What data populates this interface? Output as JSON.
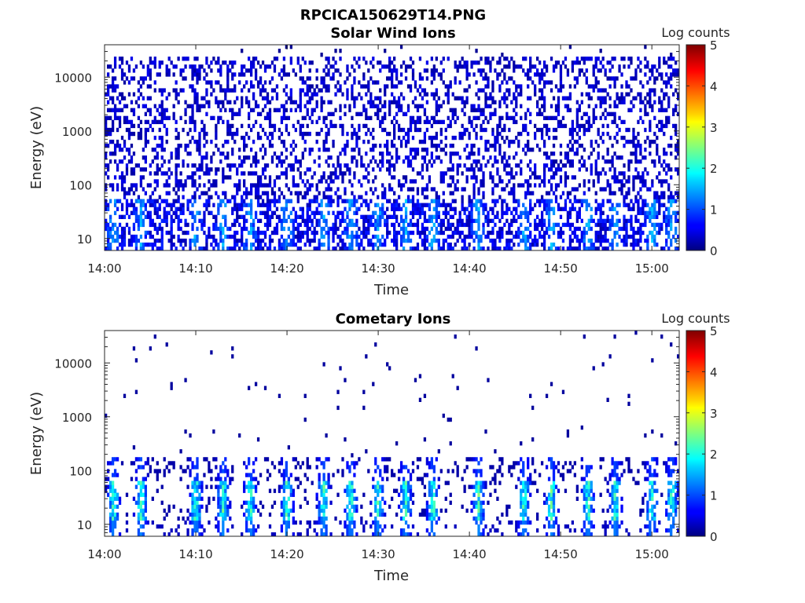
{
  "figure_title": "RPCICA150629T14.PNG",
  "chart_data": [
    {
      "type": "heatmap",
      "title": "Solar Wind Ions",
      "xlabel": "Time",
      "ylabel": "Energy (eV)",
      "y_scale": "log",
      "ylim": [
        6,
        40000
      ],
      "x_range": [
        "14:00",
        "15:03"
      ],
      "x_ticks": [
        "14:00",
        "14:10",
        "14:20",
        "14:30",
        "14:40",
        "14:50",
        "15:00"
      ],
      "y_ticks": [
        "10",
        "100",
        "1000",
        "10000"
      ],
      "y_tick_values": [
        10,
        100,
        1000,
        10000
      ],
      "colorbar": {
        "label": "Log counts",
        "min": 0,
        "max": 5,
        "ticks": [
          "0",
          "1",
          "2",
          "3",
          "4",
          "5"
        ],
        "colormap": "jet"
      },
      "grid": false,
      "pattern": "broad speckle of low counts (log 0-1) across 10 eV to 20 keV, with denser patches of log counts 1-2 below about 40 eV"
    },
    {
      "type": "heatmap",
      "title": "Cometary Ions",
      "xlabel": "Time",
      "ylabel": "Energy (eV)",
      "y_scale": "log",
      "ylim": [
        6,
        40000
      ],
      "x_range": [
        "14:00",
        "15:03"
      ],
      "x_ticks": [
        "14:00",
        "14:10",
        "14:20",
        "14:30",
        "14:40",
        "14:50",
        "15:00"
      ],
      "y_ticks": [
        "10",
        "100",
        "1000",
        "10000"
      ],
      "y_tick_values": [
        10,
        100,
        1000,
        10000
      ],
      "colorbar": {
        "label": "Log counts",
        "min": 0,
        "max": 5,
        "ticks": [
          "0",
          "1",
          "2",
          "3",
          "4",
          "5"
        ],
        "colormap": "jet"
      },
      "grid": false,
      "pattern": "sparse isolated counts above 200 eV; dense low-energy bursts (10-60 eV) reaching log counts 2-3 at roughly 14:01, 14:04, 14:10, 14:13, 14:16, 14:20, 14:24, 14:27, 14:30, 14:33, 14:36, 14:41, 14:46, 14:49, 14:53, 14:56, 15:00, 15:02"
    }
  ]
}
